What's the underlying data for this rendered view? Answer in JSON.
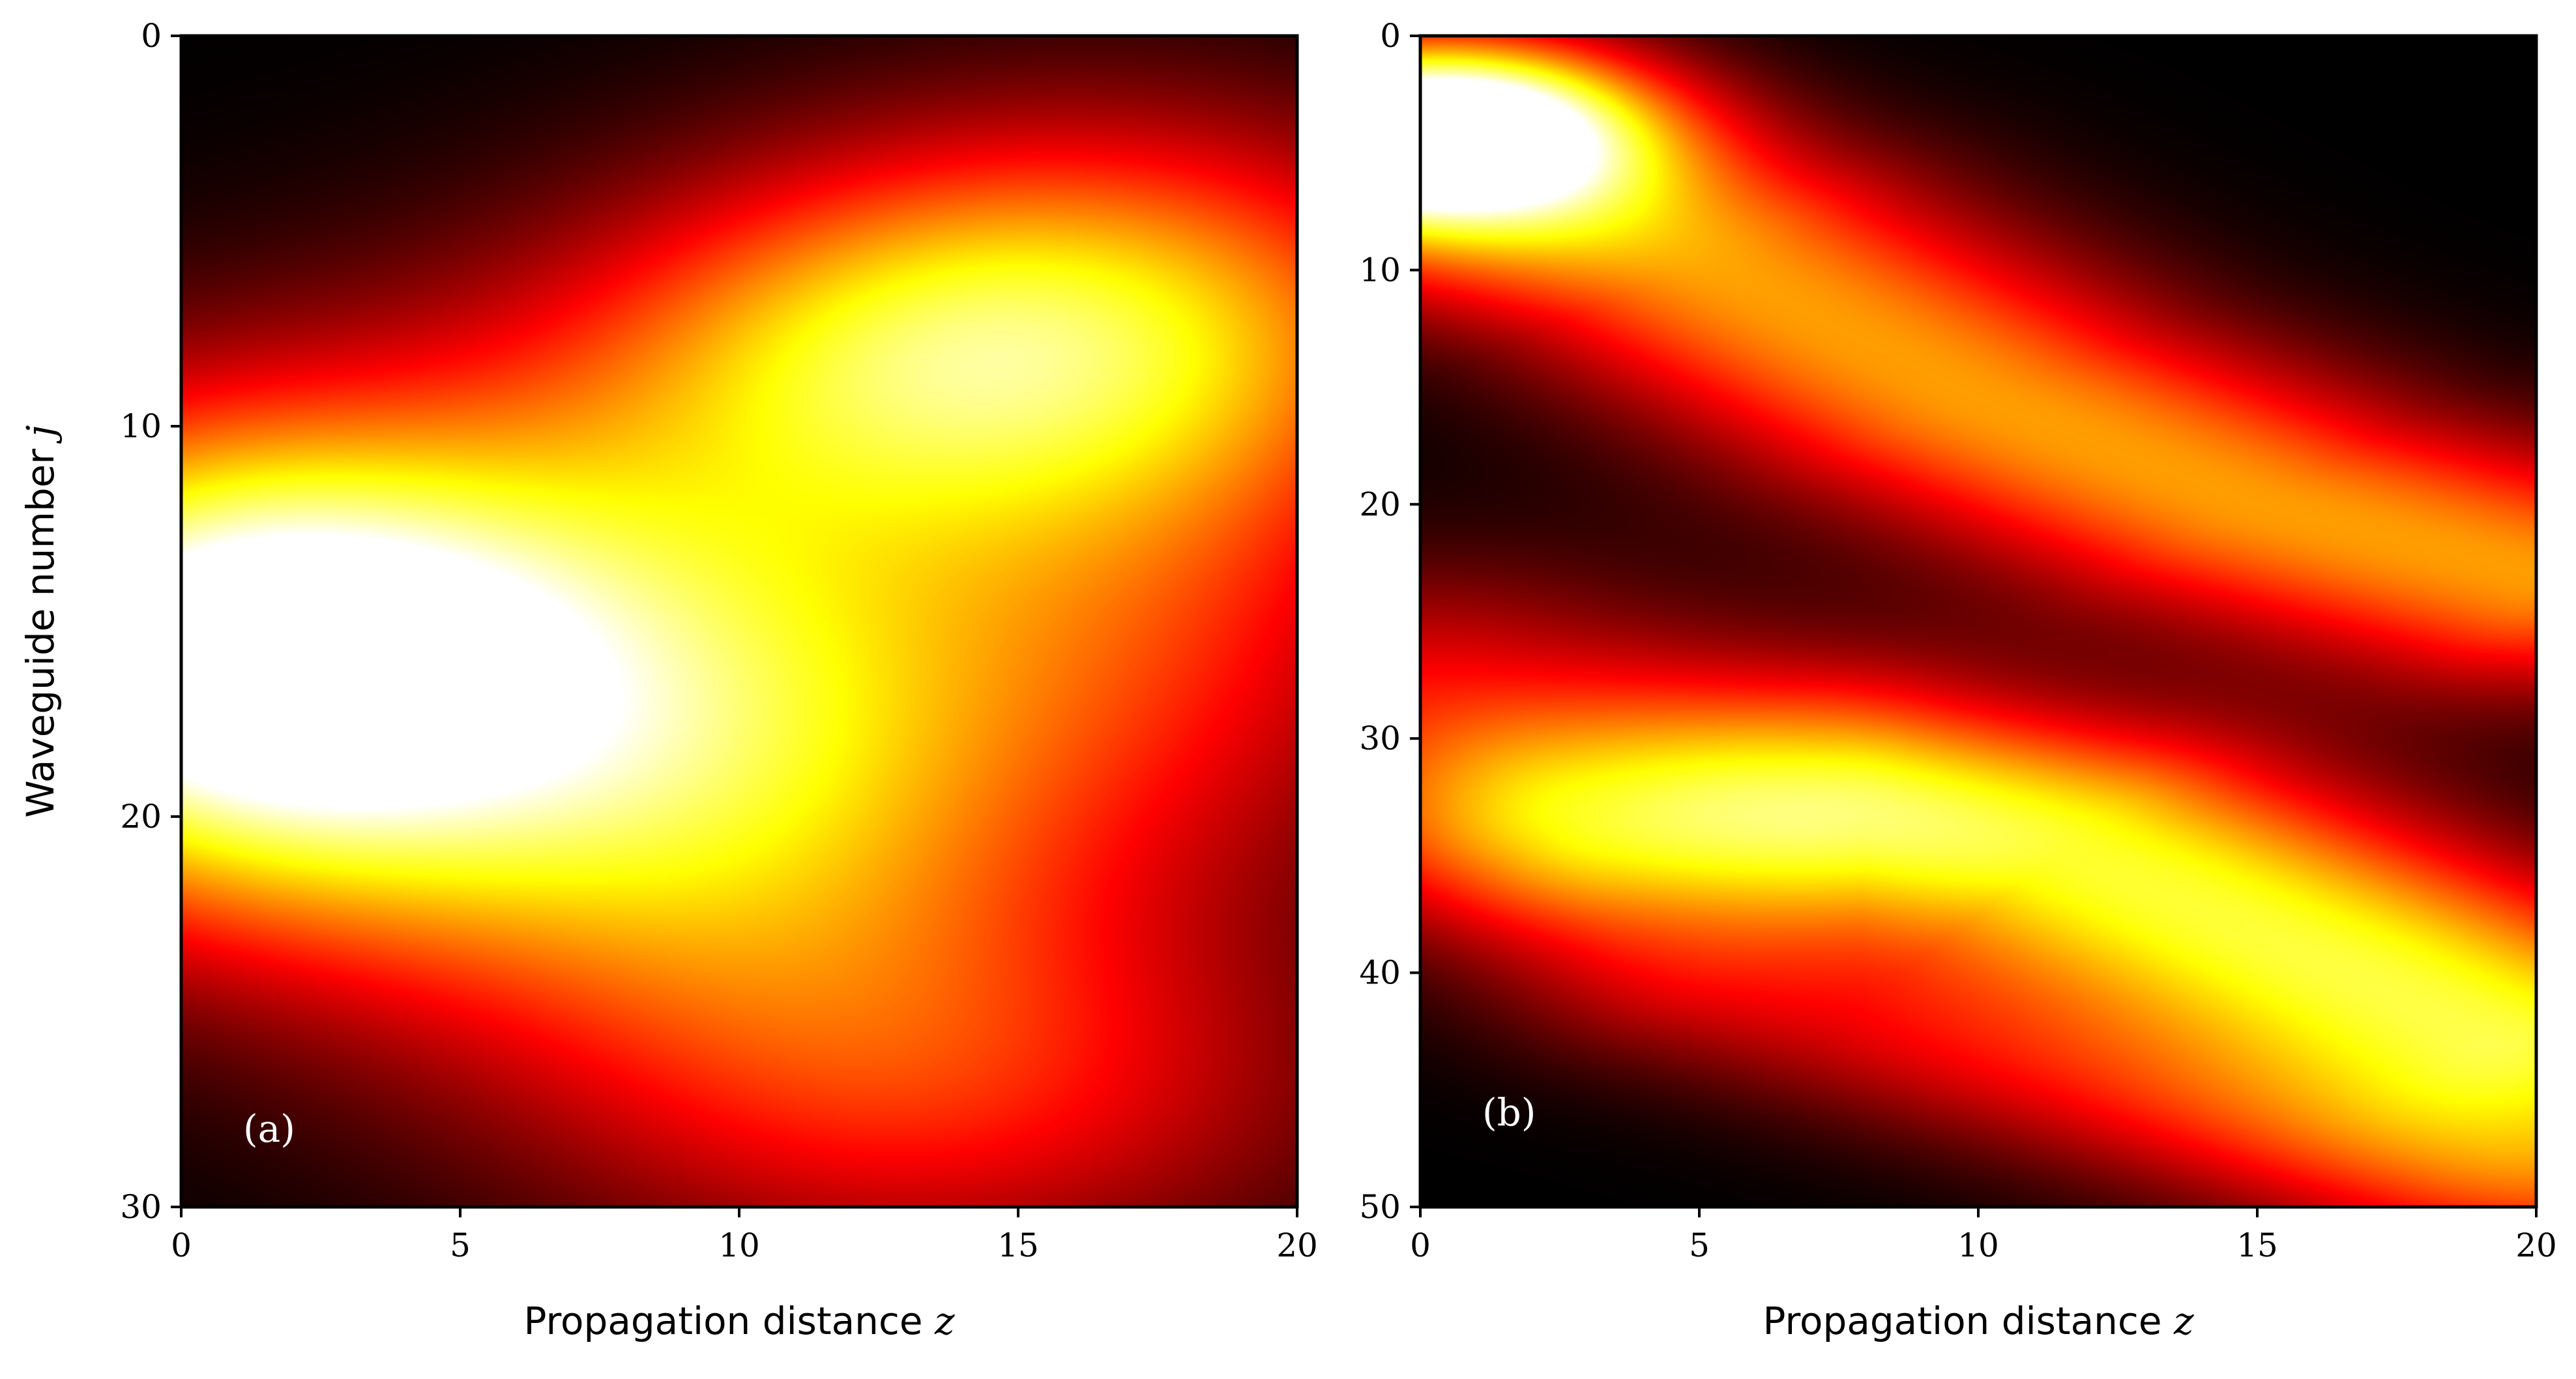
{
  "chart_data": [
    {
      "type": "heatmap",
      "panel_label": "(a)",
      "colormap": "hot",
      "xlabel": "Propagation distance",
      "xlabel_var": "z",
      "ylabel": "Waveguide number",
      "ylabel_var": "j",
      "xlim": [
        0,
        20
      ],
      "ylim": [
        30,
        0
      ],
      "xticks": [
        0,
        5,
        10,
        15,
        20
      ],
      "yticks": [
        0,
        10,
        20,
        30
      ],
      "features": [
        {
          "type": "blob",
          "z": 0.5,
          "j": 16,
          "sigma_z": 4.2,
          "sigma_j": 4.2,
          "value": 1.0
        },
        {
          "type": "blob",
          "z": 6.0,
          "j": 17,
          "sigma_z": 4.5,
          "sigma_j": 5.5,
          "value": 0.55
        },
        {
          "type": "blob",
          "z": 11.0,
          "j": 19,
          "sigma_z": 4.0,
          "sigma_j": 6.0,
          "value": 0.38
        },
        {
          "type": "blob",
          "z": 17.0,
          "j": 7.5,
          "sigma_z": 4.5,
          "sigma_j": 3.8,
          "value": 0.58
        },
        {
          "type": "blob",
          "z": 12.0,
          "j": 8.0,
          "sigma_z": 4.0,
          "sigma_j": 3.2,
          "value": 0.35
        },
        {
          "type": "blob",
          "z": 17.5,
          "j": 16.0,
          "sigma_z": 4.0,
          "sigma_j": 4.5,
          "value": 0.3
        },
        {
          "type": "blob",
          "z": 14.5,
          "j": 27.0,
          "sigma_z": 5.0,
          "sigma_j": 3.5,
          "value": 0.3
        }
      ]
    },
    {
      "type": "heatmap",
      "panel_label": "(b)",
      "colormap": "hot",
      "xlabel": "Propagation distance",
      "xlabel_var": "z",
      "xlim": [
        0,
        20
      ],
      "ylim": [
        50,
        0
      ],
      "xticks": [
        0,
        5,
        10,
        15,
        20
      ],
      "yticks": [
        0,
        10,
        20,
        30,
        40,
        50
      ],
      "features": [
        {
          "type": "blob",
          "z": 0.5,
          "j": 4.0,
          "sigma_z": 2.6,
          "sigma_j": 2.6,
          "value": 1.0
        },
        {
          "type": "band",
          "path": [
            [
              0,
              6
            ],
            [
              5,
              9.5
            ],
            [
              10,
              15.5
            ],
            [
              15,
              20
            ],
            [
              20,
              23
            ]
          ],
          "width_j": 3.5,
          "value": 0.6
        },
        {
          "type": "band",
          "path": [
            [
              3,
              34
            ],
            [
              8,
              33
            ],
            [
              12,
              34
            ],
            [
              16,
              38
            ],
            [
              20,
              42
            ]
          ],
          "width_j": 3.4,
          "value": 0.55
        },
        {
          "type": "band",
          "path": [
            [
              0,
              28
            ],
            [
              5,
              31
            ],
            [
              10,
              37
            ],
            [
              15,
              41.5
            ],
            [
              20,
              47
            ]
          ],
          "width_j": 4.0,
          "value": 0.32
        },
        {
          "type": "band",
          "path": [
            [
              5,
              41
            ],
            [
              10,
              44
            ],
            [
              15,
              46.5
            ],
            [
              20,
              49
            ]
          ],
          "width_j": 2.6,
          "value": 0.2
        }
      ]
    }
  ]
}
